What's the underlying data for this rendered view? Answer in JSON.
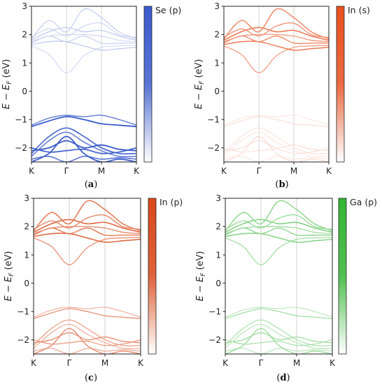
{
  "chart_data": [
    {
      "type": "line",
      "panel": "a",
      "caption": "(a)",
      "colorbar_label": "Se (p)",
      "color": "#3b5bcc",
      "ylabel_base": "E − E",
      "ylabel_sub": "F",
      "ylabel_unit": " (eV)",
      "ylim": [
        -2.5,
        3
      ],
      "yticks": [
        "3",
        "2",
        "1",
        "0",
        "−1",
        "−2"
      ],
      "xticks": [
        "K",
        "Γ",
        "M",
        "K"
      ],
      "weights": {
        "cond": 0.35,
        "val": 0.95
      },
      "grid": "vertical lines at Γ and M"
    },
    {
      "type": "line",
      "panel": "b",
      "caption": "(b)",
      "colorbar_label": "In (s)",
      "color": "#e8501f",
      "ylabel_base": "E − E",
      "ylabel_sub": "F",
      "ylabel_unit": " (eV)",
      "ylim": [
        -2.5,
        3
      ],
      "yticks": [
        "3",
        "2",
        "1",
        "0",
        "−1",
        "−2"
      ],
      "xticks": [
        "K",
        "Γ",
        "M",
        "K"
      ],
      "weights": {
        "cond": 0.7,
        "val": 0.22
      },
      "grid": "vertical lines at Γ and M"
    },
    {
      "type": "line",
      "panel": "c",
      "caption": "(c)",
      "colorbar_label": "In (p)",
      "color": "#d9481a",
      "ylabel_base": "E − E",
      "ylabel_sub": "F",
      "ylabel_unit": " (eV)",
      "ylim": [
        -2.5,
        3
      ],
      "yticks": [
        "3",
        "2",
        "1",
        "0",
        "−1",
        "−2"
      ],
      "xticks": [
        "K",
        "Γ",
        "M",
        "K"
      ],
      "weights": {
        "cond": 0.75,
        "val": 0.55
      },
      "grid": "vertical lines at Γ and M"
    },
    {
      "type": "line",
      "panel": "d",
      "caption": "(d)",
      "colorbar_label": "Ga (p)",
      "color": "#33b533",
      "ylabel_base": "E − E",
      "ylabel_sub": "F",
      "ylabel_unit": " (eV)",
      "ylim": [
        -2.5,
        3
      ],
      "yticks": [
        "3",
        "2",
        "1",
        "0",
        "−1",
        "−2"
      ],
      "xticks": [
        "K",
        "Γ",
        "M",
        "K"
      ],
      "weights": {
        "cond": 0.6,
        "val": 0.45
      },
      "grid": "vertical lines at Γ and M"
    }
  ],
  "bands": {
    "k_positions": {
      "K": 0,
      "Γ": 1,
      "M": 2.0,
      "K_end": 3.0
    },
    "conduction": [
      {
        "name": "c1",
        "k": [
          0,
          0.5,
          1,
          1.5,
          2,
          2.5,
          3
        ],
        "E": [
          1.6,
          1.3,
          0.65,
          1.25,
          1.55,
          1.6,
          1.62
        ]
      },
      {
        "name": "c2",
        "k": [
          0,
          0.5,
          1,
          1.5,
          2,
          2.5,
          3
        ],
        "E": [
          1.65,
          1.75,
          1.75,
          1.6,
          1.45,
          1.5,
          1.55
        ]
      },
      {
        "name": "c3",
        "k": [
          0,
          0.5,
          1,
          1.5,
          2,
          2.5,
          3
        ],
        "E": [
          1.7,
          1.95,
          1.75,
          1.95,
          1.7,
          1.7,
          1.7
        ]
      },
      {
        "name": "c4",
        "k": [
          0,
          0.5,
          1,
          1.5,
          2,
          2.5,
          3
        ],
        "E": [
          1.75,
          1.95,
          2.0,
          2.0,
          1.95,
          1.8,
          1.75
        ]
      },
      {
        "name": "c5",
        "k": [
          0,
          0.5,
          1,
          1.5,
          2,
          2.5,
          3
        ],
        "E": [
          1.8,
          2.1,
          2.25,
          2.1,
          2.15,
          1.95,
          1.8
        ]
      },
      {
        "name": "c6",
        "k": [
          0,
          0.5,
          1,
          1.5,
          2,
          2.5,
          3
        ],
        "E": [
          1.85,
          2.5,
          2.1,
          2.9,
          2.6,
          2.1,
          1.85
        ]
      },
      {
        "name": "c7",
        "k": [
          0,
          0.5,
          1,
          1.5,
          2,
          2.5,
          3
        ],
        "E": [
          1.9,
          2.2,
          1.95,
          2.3,
          2.4,
          2.0,
          1.9
        ]
      }
    ],
    "valence": [
      {
        "name": "v1",
        "k": [
          0,
          0.5,
          1,
          1.5,
          2,
          2.5,
          3
        ],
        "E": [
          -1.2,
          -0.95,
          -0.85,
          -0.9,
          -0.85,
          -1.0,
          -1.2
        ]
      },
      {
        "name": "v2",
        "k": [
          0,
          0.5,
          1,
          1.5,
          2,
          2.5,
          3
        ],
        "E": [
          -1.25,
          -1.05,
          -0.9,
          -1.0,
          -1.15,
          -1.2,
          -1.25
        ]
      },
      {
        "name": "v3",
        "k": [
          0,
          0.5,
          1,
          1.5,
          2,
          2.5,
          3
        ],
        "E": [
          -2.2,
          -1.6,
          -1.3,
          -1.6,
          -2.0,
          -2.2,
          -2.2
        ]
      },
      {
        "name": "v4",
        "k": [
          0,
          0.5,
          1,
          1.5,
          2,
          2.5,
          3
        ],
        "E": [
          -2.3,
          -1.75,
          -1.45,
          -1.8,
          -2.1,
          -2.3,
          -2.3
        ]
      },
      {
        "name": "v5",
        "k": [
          0,
          0.5,
          1,
          1.5,
          2,
          2.5,
          3
        ],
        "E": [
          -2.1,
          -2.0,
          -1.75,
          -2.0,
          -1.9,
          -2.05,
          -2.1
        ]
      },
      {
        "name": "v6",
        "k": [
          0,
          0.5,
          1,
          1.5,
          2,
          2.5,
          3
        ],
        "E": [
          -2.0,
          -2.15,
          -2.1,
          -2.05,
          -2.2,
          -2.15,
          -2.0
        ]
      },
      {
        "name": "v7",
        "k": [
          0,
          0.5,
          1,
          1.5,
          2,
          2.5,
          3
        ],
        "E": [
          -2.4,
          -2.3,
          -2.5,
          -2.3,
          -2.4,
          -2.35,
          -2.4
        ]
      },
      {
        "name": "v8",
        "k": [
          0,
          0.5,
          1,
          1.5,
          2,
          2.5,
          3
        ],
        "E": [
          -2.5,
          -2.2,
          -1.6,
          -2.2,
          -2.5,
          -2.4,
          -2.5
        ]
      }
    ]
  }
}
